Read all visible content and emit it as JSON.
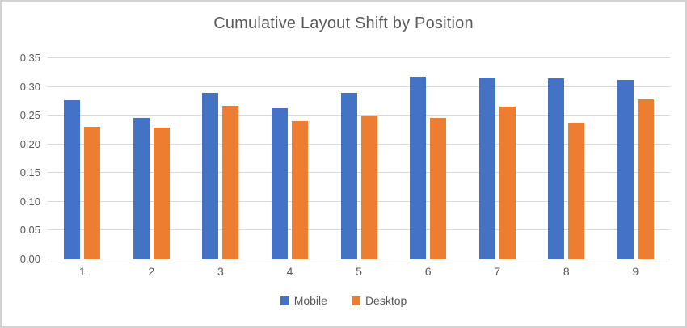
{
  "chart_data": {
    "type": "bar",
    "title": "Cumulative Layout Shift by Position",
    "categories": [
      "1",
      "2",
      "3",
      "4",
      "5",
      "6",
      "7",
      "8",
      "9"
    ],
    "series": [
      {
        "name": "Mobile",
        "color": "#4472C4",
        "values": [
          0.277,
          0.246,
          0.29,
          0.263,
          0.289,
          0.317,
          0.316,
          0.315,
          0.312
        ]
      },
      {
        "name": "Desktop",
        "color": "#ED7D31",
        "values": [
          0.23,
          0.229,
          0.267,
          0.24,
          0.25,
          0.246,
          0.265,
          0.237,
          0.278
        ]
      }
    ],
    "xlabel": "",
    "ylabel": "",
    "ylim": [
      0,
      0.35
    ],
    "ytick_step": 0.05,
    "ytick_labels": [
      "0.00",
      "0.05",
      "0.10",
      "0.15",
      "0.20",
      "0.25",
      "0.30",
      "0.35"
    ],
    "grid": true,
    "legend_position": "bottom"
  },
  "styles": {
    "mobile_color": "#4472C4",
    "desktop_color": "#ED7D31",
    "text_color": "#595959",
    "gridline_color": "#D9D9D9",
    "background": "#FFFFFF"
  }
}
